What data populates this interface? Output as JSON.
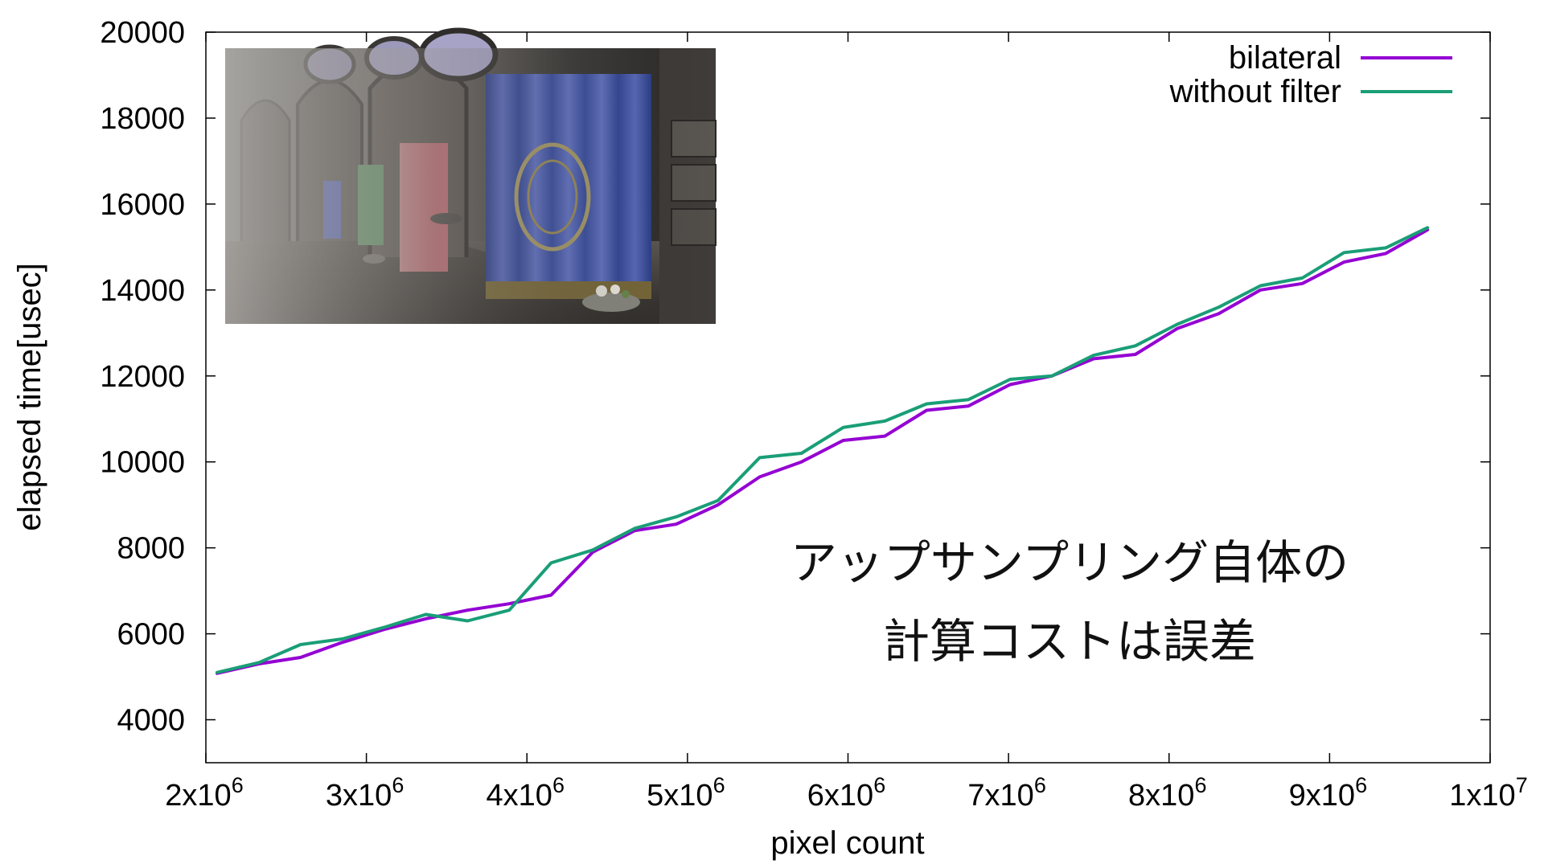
{
  "chart_data": {
    "type": "line",
    "title": "",
    "xlabel": "pixel count",
    "ylabel": "elapsed time[usec]",
    "xlim": [
      2000000,
      10000000
    ],
    "ylim": [
      3000,
      20000
    ],
    "grid": false,
    "legend_position": "top-right",
    "x_ticks": [
      {
        "value": 2000000,
        "base": "2x10",
        "exp": "6"
      },
      {
        "value": 3000000,
        "base": "3x10",
        "exp": "6"
      },
      {
        "value": 4000000,
        "base": "4x10",
        "exp": "6"
      },
      {
        "value": 5000000,
        "base": "5x10",
        "exp": "6"
      },
      {
        "value": 6000000,
        "base": "6x10",
        "exp": "6"
      },
      {
        "value": 7000000,
        "base": "7x10",
        "exp": "6"
      },
      {
        "value": 8000000,
        "base": "8x10",
        "exp": "6"
      },
      {
        "value": 9000000,
        "base": "9x10",
        "exp": "6"
      },
      {
        "value": 10000000,
        "base": "1x10",
        "exp": "7"
      }
    ],
    "y_ticks": [
      {
        "value": 4000,
        "label": "4000"
      },
      {
        "value": 6000,
        "label": "6000"
      },
      {
        "value": 8000,
        "label": "8000"
      },
      {
        "value": 10000,
        "label": "10000"
      },
      {
        "value": 12000,
        "label": "12000"
      },
      {
        "value": 14000,
        "label": "14000"
      },
      {
        "value": 16000,
        "label": "16000"
      },
      {
        "value": 18000,
        "label": "18000"
      },
      {
        "value": 20000,
        "label": "20000"
      }
    ],
    "x": [
      2070000,
      2330000,
      2590000,
      2850000,
      3110000,
      3370000,
      3630000,
      3890000,
      4150000,
      4410000,
      4670000,
      4930000,
      5190000,
      5450000,
      5710000,
      5970000,
      6230000,
      6490000,
      6750000,
      7010000,
      7270000,
      7530000,
      7790000,
      8050000,
      8310000,
      8570000,
      8830000,
      9090000,
      9350000,
      9610000
    ],
    "series": [
      {
        "name": "bilateral",
        "color": "#9400d3",
        "values": [
          5080,
          5300,
          5450,
          5800,
          6100,
          6350,
          6550,
          6700,
          6900,
          7900,
          8400,
          8550,
          9000,
          9650,
          10000,
          10500,
          10600,
          11200,
          11300,
          11800,
          12000,
          12400,
          12500,
          13100,
          13450,
          14000,
          14150,
          14650,
          14850,
          15400
        ]
      },
      {
        "name": "without filter",
        "color": "#1a9e77",
        "values": [
          5100,
          5330,
          5750,
          5880,
          6150,
          6450,
          6300,
          6550,
          7650,
          7950,
          8450,
          8720,
          9100,
          10100,
          10200,
          10800,
          10950,
          11350,
          11450,
          11920,
          12000,
          12480,
          12700,
          13200,
          13600,
          14100,
          14280,
          14870,
          14980,
          15450
        ]
      }
    ],
    "annotations": [
      "アップサンプリング自体の",
      "計算コストは誤差"
    ],
    "inset_image": "rendered-scene-curtains"
  }
}
